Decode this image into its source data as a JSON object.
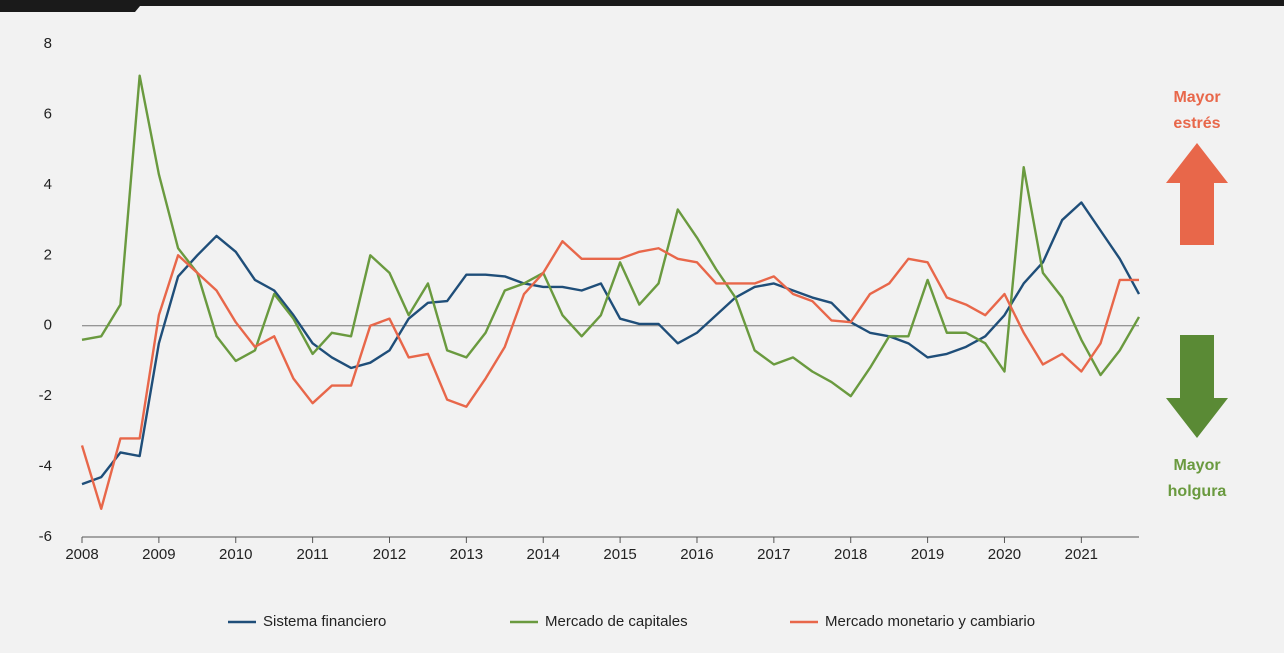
{
  "chart_data": {
    "type": "line",
    "x": [
      2008,
      2008.25,
      2008.5,
      2008.75,
      2009,
      2009.25,
      2009.5,
      2009.75,
      2010,
      2010.25,
      2010.5,
      2010.75,
      2011,
      2011.25,
      2011.5,
      2011.75,
      2012,
      2012.25,
      2012.5,
      2012.75,
      2013,
      2013.25,
      2013.5,
      2013.75,
      2014,
      2014.25,
      2014.5,
      2014.75,
      2015,
      2015.25,
      2015.5,
      2015.75,
      2016,
      2016.25,
      2016.5,
      2016.75,
      2017,
      2017.25,
      2017.5,
      2017.75,
      2018,
      2018.25,
      2018.5,
      2018.75,
      2019,
      2019.25,
      2019.5,
      2019.75,
      2020,
      2020.25,
      2020.5,
      2020.75,
      2021,
      2021.25,
      2021.5,
      2021.75
    ],
    "series": [
      {
        "name": "Sistema financiero",
        "color": "#1f4e79",
        "values": [
          -4.5,
          -4.3,
          -3.6,
          -3.7,
          -0.5,
          1.4,
          2.0,
          2.55,
          2.1,
          1.3,
          1.0,
          0.3,
          -0.5,
          -0.9,
          -1.2,
          -1.05,
          -0.7,
          0.2,
          0.65,
          0.7,
          1.45,
          1.45,
          1.4,
          1.2,
          1.1,
          1.1,
          1.0,
          1.2,
          0.2,
          0.05,
          0.05,
          -0.5,
          -0.2,
          0.3,
          0.8,
          1.1,
          1.2,
          1.0,
          0.8,
          0.65,
          0.1,
          -0.2,
          -0.3,
          -0.5,
          -0.9,
          -0.8,
          -0.6,
          -0.3,
          0.3,
          1.2,
          1.8,
          3.0,
          3.5,
          2.7,
          1.9,
          0.9
        ]
      },
      {
        "name": "Mercado de capitales",
        "color": "#6a9a3f",
        "values": [
          -0.4,
          -0.3,
          0.6,
          7.1,
          4.3,
          2.2,
          1.5,
          -0.3,
          -1.0,
          -0.7,
          0.9,
          0.2,
          -0.8,
          -0.2,
          -0.3,
          2.0,
          1.5,
          0.3,
          1.2,
          -0.7,
          -0.9,
          -0.2,
          1.0,
          1.2,
          1.5,
          0.3,
          -0.3,
          0.3,
          1.8,
          0.6,
          1.2,
          3.3,
          2.5,
          1.6,
          0.8,
          -0.7,
          -1.1,
          -0.9,
          -1.3,
          -1.6,
          -2.0,
          -1.2,
          -0.3,
          -0.3,
          1.3,
          -0.2,
          -0.2,
          -0.5,
          -1.3,
          4.5,
          1.5,
          0.8,
          -0.4,
          -1.4,
          -0.7,
          0.25
        ]
      },
      {
        "name": "Mercado monetario y cambiario",
        "color": "#e8674a",
        "values": [
          -3.4,
          -5.2,
          -3.2,
          -3.2,
          0.3,
          2.0,
          1.5,
          1.0,
          0.1,
          -0.6,
          -0.3,
          -1.5,
          -2.2,
          -1.7,
          -1.7,
          0.0,
          0.2,
          -0.9,
          -0.8,
          -2.1,
          -2.3,
          -1.5,
          -0.6,
          0.9,
          1.5,
          2.4,
          1.9,
          1.9,
          1.9,
          2.1,
          2.2,
          1.9,
          1.8,
          1.2,
          1.2,
          1.2,
          1.4,
          0.9,
          0.7,
          0.15,
          0.1,
          0.9,
          1.2,
          1.9,
          1.8,
          0.8,
          0.6,
          0.3,
          0.9,
          -0.2,
          -1.1,
          -0.8,
          -1.3,
          -0.5,
          1.3,
          1.3
        ]
      }
    ],
    "xlim": [
      2008,
      2021.75
    ],
    "xticks": [
      2008,
      2009,
      2010,
      2011,
      2012,
      2013,
      2014,
      2015,
      2016,
      2017,
      2018,
      2019,
      2020,
      2021
    ],
    "ylim": [
      -6,
      8
    ],
    "yticks": [
      -6,
      -4,
      -2,
      0,
      2,
      4,
      6,
      8
    ],
    "annotations": [
      {
        "lines": [
          "Mayor",
          "estrés"
        ],
        "color": "#e8674a"
      },
      {
        "lines": [
          "Mayor",
          "holgura"
        ],
        "color": "#6a9a3f"
      }
    ],
    "legend": "bottom"
  }
}
